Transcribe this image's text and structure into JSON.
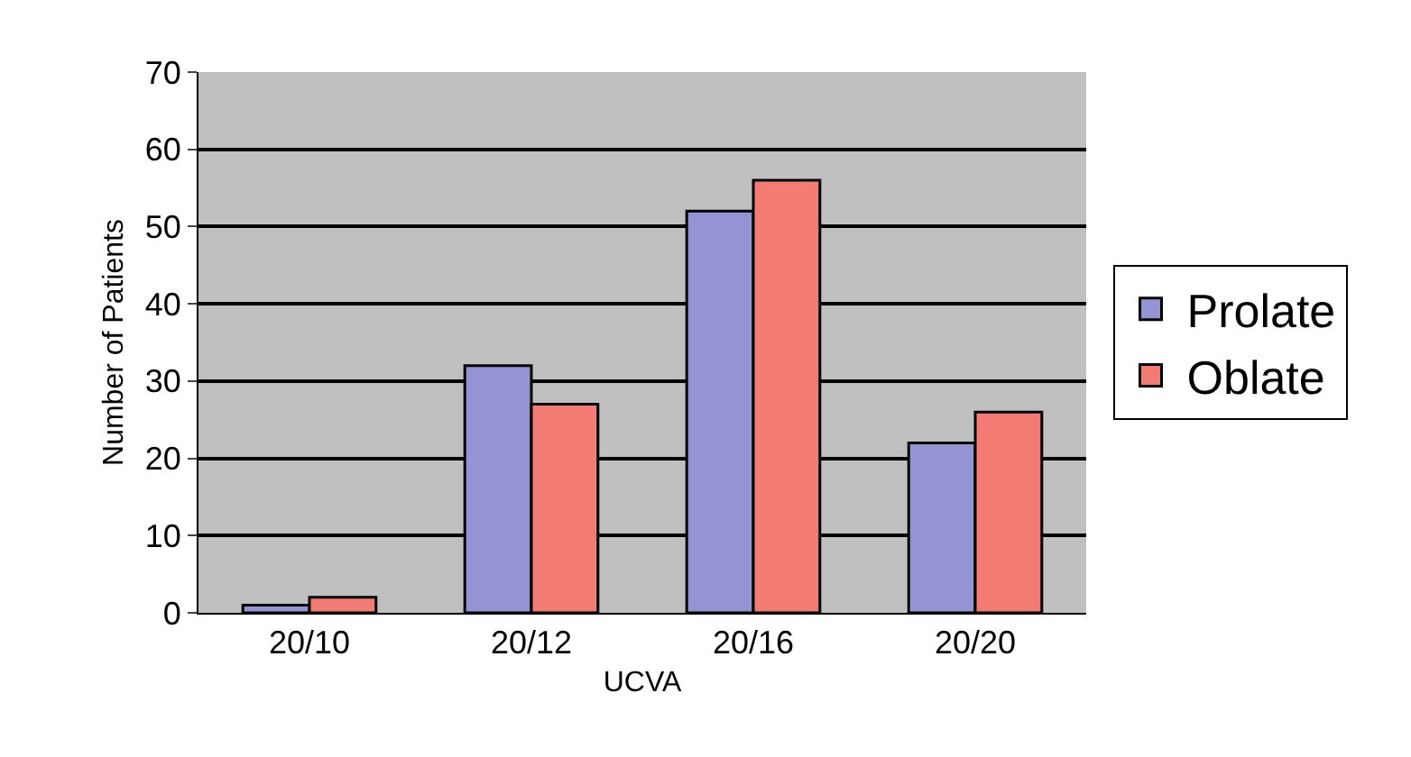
{
  "chart_data": {
    "type": "bar",
    "xlabel": "UCVA",
    "ylabel": "Number of Patients",
    "categories": [
      "20/10",
      "20/12",
      "20/16",
      "20/20"
    ],
    "series": [
      {
        "name": "Prolate",
        "color": "#9494d4",
        "values": [
          1,
          32,
          52,
          22
        ]
      },
      {
        "name": "Oblate",
        "color": "#f27c74",
        "values": [
          2,
          27,
          56,
          26
        ]
      }
    ],
    "ylim": [
      0,
      70
    ],
    "yticks": [
      0,
      10,
      20,
      30,
      40,
      50,
      60,
      70
    ],
    "grid": "y",
    "legend": "right"
  }
}
